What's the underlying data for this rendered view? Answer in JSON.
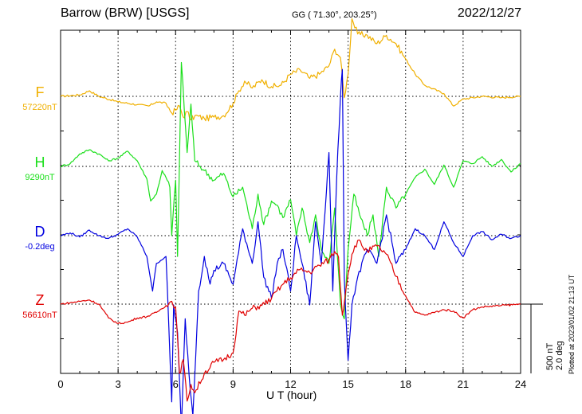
{
  "header": {
    "station": "Barrow (BRW)  [USGS]",
    "coords": "GG ( 71.30°, 203.25°)",
    "date": "2022/12/27"
  },
  "xlabel": "U T (hour)",
  "footnote": "Plotted at 2023/01/02 21:13 UT",
  "scale": {
    "nt": "500 nT",
    "deg": "2.0 deg"
  },
  "colors": {
    "F": "#f0b000",
    "H": "#1adf1a",
    "D": "#0000e0",
    "Z": "#e00000"
  },
  "chart_data": {
    "type": "line",
    "x_ticks": [
      "0",
      "3",
      "6",
      "9",
      "12",
      "15",
      "18",
      "21",
      "24"
    ],
    "xlim": [
      0,
      24
    ],
    "xlabel": "U T (hour)",
    "grid": true,
    "scale_bar": "500 nT / 2.0 deg",
    "series": [
      {
        "name": "F",
        "baseline_label": "57220nT",
        "unit": "nT",
        "x": [
          0,
          1,
          1.5,
          2,
          3,
          4,
          4.6,
          5,
          5.5,
          5.8,
          6,
          6.2,
          6.4,
          6.6,
          6.8,
          7,
          7.5,
          8,
          8.5,
          9,
          9.3,
          9.6,
          10,
          10.5,
          11,
          11.5,
          12,
          12.5,
          13,
          13.5,
          14,
          14.3,
          14.6,
          14.8,
          15,
          15.2,
          15.5,
          16,
          16.5,
          17,
          17.5,
          18,
          18.5,
          19,
          20,
          20.5,
          21,
          22,
          23,
          24
        ],
        "y": [
          0,
          10,
          40,
          0,
          -40,
          -60,
          -70,
          -40,
          -50,
          -120,
          -100,
          -70,
          -150,
          -110,
          -170,
          -140,
          -160,
          -150,
          -140,
          -50,
          40,
          110,
          60,
          120,
          70,
          80,
          160,
          190,
          130,
          160,
          220,
          340,
          280,
          -10,
          160,
          560,
          450,
          440,
          380,
          440,
          380,
          270,
          160,
          80,
          20,
          -70,
          -20,
          0,
          -10,
          0
        ]
      },
      {
        "name": "H",
        "baseline_label": "9290nT",
        "unit": "nT",
        "x": [
          0,
          0.5,
          1,
          1.5,
          2,
          2.5,
          3,
          3.5,
          4,
          4.5,
          4.7,
          5,
          5.3,
          5.5,
          5.7,
          5.8,
          6,
          6.1,
          6.3,
          6.6,
          6.8,
          7,
          7.5,
          8,
          8.5,
          9,
          9.5,
          10,
          10.3,
          10.6,
          11,
          11.3,
          11.6,
          12,
          12.3,
          12.6,
          13,
          13.3,
          13.6,
          14,
          14.3,
          14.6,
          14.8,
          15,
          15.3,
          15.6,
          16,
          16.3,
          16.6,
          17,
          17.5,
          18,
          18.5,
          19,
          19.5,
          20,
          20.5,
          21,
          21.5,
          22,
          22.5,
          23,
          23.5,
          24
        ],
        "y": [
          0,
          20,
          90,
          120,
          90,
          40,
          60,
          110,
          40,
          -90,
          -250,
          -200,
          -30,
          -80,
          -150,
          -500,
          -100,
          -650,
          750,
          100,
          450,
          40,
          -30,
          -100,
          -50,
          -220,
          -150,
          -450,
          -200,
          -420,
          -250,
          -280,
          -370,
          -240,
          -500,
          -300,
          -550,
          -350,
          -600,
          -700,
          -300,
          -1000,
          -1100,
          -600,
          -200,
          -350,
          -500,
          -350,
          -650,
          -150,
          -300,
          -200,
          -80,
          -20,
          -130,
          10,
          -150,
          40,
          20,
          70,
          0,
          50,
          -40,
          20
        ]
      },
      {
        "name": "D",
        "baseline_label": "-0.2deg",
        "unit": "deg",
        "x": [
          0,
          0.5,
          1,
          1.5,
          2,
          2.5,
          3,
          3.5,
          4,
          4.5,
          4.8,
          5,
          5.5,
          5.8,
          5.9,
          6.1,
          6.3,
          6.5,
          6.7,
          6.9,
          7.2,
          7.5,
          7.8,
          8,
          8.5,
          9,
          9.5,
          10,
          10.3,
          10.6,
          11,
          11.3,
          11.6,
          12,
          12.3,
          12.6,
          13,
          13.3,
          13.6,
          14,
          14.2,
          14.4,
          14.6,
          14.7,
          14.8,
          15,
          15.2,
          15.5,
          16,
          16.5,
          17,
          17.5,
          18,
          18.5,
          19,
          19.5,
          20,
          20.5,
          21,
          21.5,
          22,
          22.5,
          23,
          23.5,
          24
        ],
        "y": [
          0,
          20,
          -10,
          40,
          0,
          -20,
          10,
          50,
          -10,
          -150,
          -400,
          -200,
          -150,
          -1200,
          -500,
          -700,
          -1400,
          -600,
          -1000,
          -1300,
          -400,
          -150,
          -350,
          -250,
          -200,
          -350,
          50,
          -200,
          100,
          -300,
          -450,
          -200,
          -100,
          -400,
          0,
          -200,
          -500,
          100,
          -200,
          600,
          -400,
          400,
          1000,
          1200,
          -300,
          -900,
          -500,
          -300,
          -100,
          -200,
          150,
          -200,
          -100,
          50,
          0,
          -100,
          100,
          -50,
          -150,
          0,
          30,
          -30,
          10,
          -20,
          0
        ]
      },
      {
        "name": "Z",
        "baseline_label": "56610nT",
        "unit": "nT",
        "x": [
          0,
          1,
          1.5,
          2,
          2.5,
          3,
          3.5,
          4,
          4.5,
          5,
          5.5,
          5.8,
          6,
          6.2,
          6.4,
          6.6,
          6.8,
          7,
          7.5,
          8,
          8.5,
          9,
          9.3,
          9.6,
          10,
          10.5,
          11,
          11.5,
          12,
          12.5,
          13,
          13.5,
          14,
          14.3,
          14.5,
          14.7,
          14.9,
          15,
          15.2,
          15.5,
          16,
          16.5,
          17,
          17.5,
          18,
          18.5,
          19,
          20,
          20.5,
          21,
          21.5,
          22,
          23,
          24
        ],
        "y": [
          0,
          20,
          30,
          0,
          -100,
          -140,
          -130,
          -100,
          -90,
          -60,
          -10,
          20,
          -20,
          -500,
          -400,
          -700,
          -580,
          -640,
          -500,
          -420,
          -400,
          -350,
          -50,
          -80,
          -30,
          -10,
          40,
          130,
          190,
          250,
          230,
          280,
          320,
          380,
          340,
          -80,
          120,
          220,
          360,
          460,
          380,
          420,
          360,
          200,
          60,
          -60,
          -80,
          -40,
          -50,
          -100,
          -40,
          -20,
          -10,
          0
        ]
      }
    ]
  }
}
